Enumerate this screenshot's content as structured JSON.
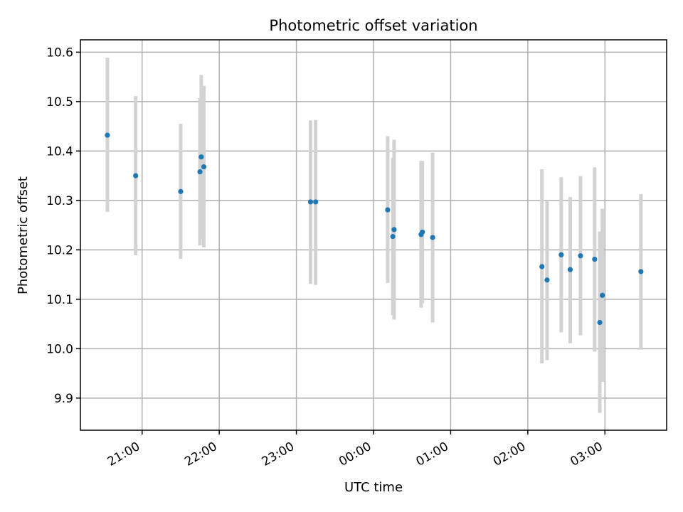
{
  "chart_data": {
    "type": "scatter",
    "title": "Photometric offset variation",
    "xlabel": "UTC time",
    "ylabel": "Photometric offset",
    "x_unit": "hours (UTC), after 24:00 continues into next day",
    "xlim": [
      "20:12",
      "03:48"
    ],
    "ylim": [
      9.835,
      10.625
    ],
    "x_ticks": [
      "21:00",
      "22:00",
      "23:00",
      "00:00",
      "01:00",
      "02:00",
      "03:00"
    ],
    "y_ticks": [
      9.9,
      10.0,
      10.1,
      10.2,
      10.3,
      10.4,
      10.5,
      10.6
    ],
    "grid": true,
    "point_color": "#1f77b4",
    "errorbar_color": "#d3d3d3",
    "points": [
      {
        "t": "20:33",
        "y": 10.432,
        "lo": 10.277,
        "hi": 10.589
      },
      {
        "t": "20:55",
        "y": 10.35,
        "lo": 10.189,
        "hi": 10.511
      },
      {
        "t": "21:30",
        "y": 10.318,
        "lo": 10.182,
        "hi": 10.455
      },
      {
        "t": "21:45",
        "y": 10.358,
        "lo": 10.209,
        "hi": 10.507
      },
      {
        "t": "21:46",
        "y": 10.388,
        "lo": 10.222,
        "hi": 10.554
      },
      {
        "t": "21:48",
        "y": 10.368,
        "lo": 10.205,
        "hi": 10.532
      },
      {
        "t": "23:11",
        "y": 10.297,
        "lo": 10.131,
        "hi": 10.462
      },
      {
        "t": "23:15",
        "y": 10.297,
        "lo": 10.129,
        "hi": 10.463
      },
      {
        "t": "00:11",
        "y": 10.281,
        "lo": 10.133,
        "hi": 10.43
      },
      {
        "t": "00:15",
        "y": 10.227,
        "lo": 10.068,
        "hi": 10.386
      },
      {
        "t": "00:16",
        "y": 10.241,
        "lo": 10.059,
        "hi": 10.423
      },
      {
        "t": "00:37",
        "y": 10.231,
        "lo": 10.083,
        "hi": 10.38
      },
      {
        "t": "00:38",
        "y": 10.236,
        "lo": 10.092,
        "hi": 10.38
      },
      {
        "t": "00:46",
        "y": 10.225,
        "lo": 10.053,
        "hi": 10.397
      },
      {
        "t": "02:11",
        "y": 10.166,
        "lo": 9.97,
        "hi": 10.363
      },
      {
        "t": "02:15",
        "y": 10.139,
        "lo": 9.977,
        "hi": 10.3
      },
      {
        "t": "02:26",
        "y": 10.19,
        "lo": 10.033,
        "hi": 10.347
      },
      {
        "t": "02:33",
        "y": 10.16,
        "lo": 10.011,
        "hi": 10.307
      },
      {
        "t": "02:41",
        "y": 10.188,
        "lo": 10.027,
        "hi": 10.349
      },
      {
        "t": "02:52",
        "y": 10.181,
        "lo": 9.994,
        "hi": 10.367
      },
      {
        "t": "02:56",
        "y": 10.053,
        "lo": 9.87,
        "hi": 10.237
      },
      {
        "t": "02:58",
        "y": 10.108,
        "lo": 9.933,
        "hi": 10.283
      },
      {
        "t": "03:28",
        "y": 10.156,
        "lo": 9.998,
        "hi": 10.313
      }
    ]
  }
}
